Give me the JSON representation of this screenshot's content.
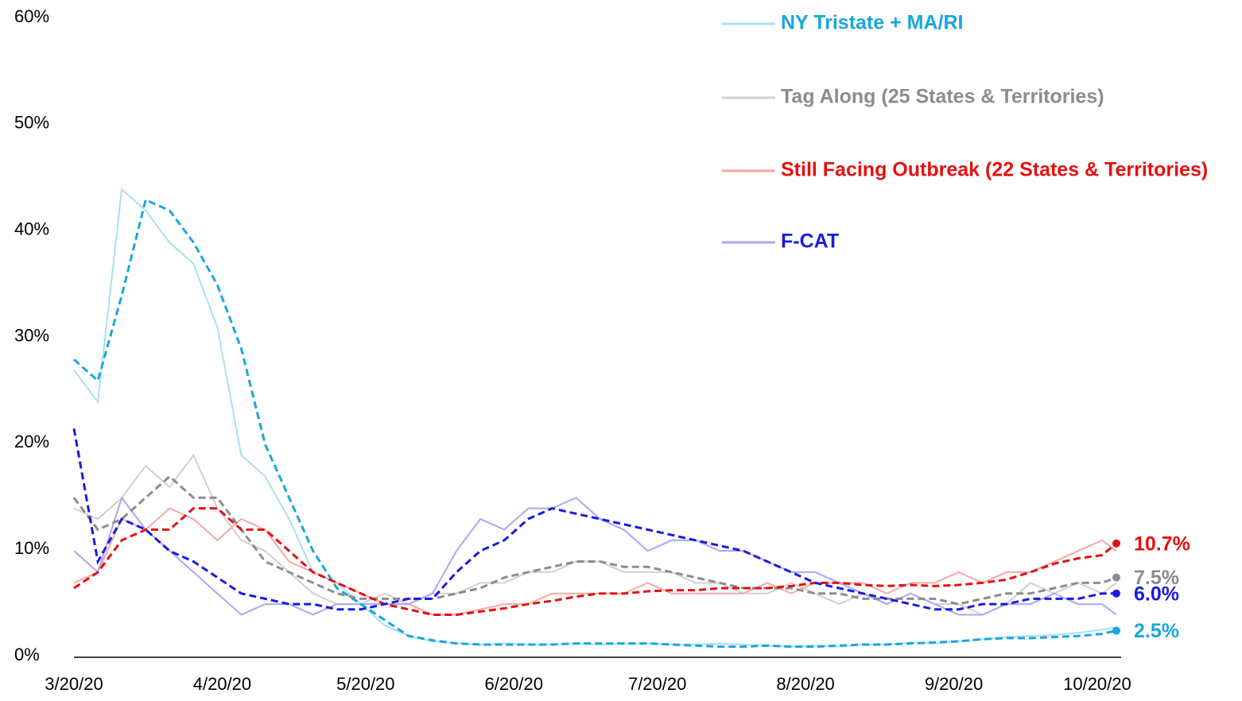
{
  "chart_data": {
    "type": "line",
    "x": [
      "3/20/20",
      "3/25/20",
      "3/30/20",
      "4/4/20",
      "4/9/20",
      "4/14/20",
      "4/19/20",
      "4/24/20",
      "4/29/20",
      "5/4/20",
      "5/9/20",
      "5/14/20",
      "5/19/20",
      "5/24/20",
      "5/29/20",
      "6/3/20",
      "6/8/20",
      "6/13/20",
      "6/18/20",
      "6/23/20",
      "6/28/20",
      "7/3/20",
      "7/8/20",
      "7/13/20",
      "7/18/20",
      "7/23/20",
      "7/28/20",
      "8/2/20",
      "8/7/20",
      "8/12/20",
      "8/17/20",
      "8/22/20",
      "8/27/20",
      "9/1/20",
      "9/6/20",
      "9/11/20",
      "9/16/20",
      "9/21/20",
      "9/26/20",
      "10/1/20",
      "10/6/20",
      "10/11/20",
      "10/16/20",
      "10/21/20",
      "10/24/20"
    ],
    "xlim": [
      "3/20/20",
      "10/25/20"
    ],
    "xticks": [
      "3/20/20",
      "4/20/20",
      "5/20/20",
      "6/20/20",
      "7/20/20",
      "8/20/20",
      "9/20/20",
      "10/20/20"
    ],
    "ylim": [
      0,
      60
    ],
    "yticks": [
      {
        "value": 0,
        "label": "0%"
      },
      {
        "value": 10,
        "label": "10%"
      },
      {
        "value": 20,
        "label": "20%"
      },
      {
        "value": 30,
        "label": "30%"
      },
      {
        "value": 40,
        "label": "40%"
      },
      {
        "value": 50,
        "label": "50%"
      },
      {
        "value": 60,
        "label": "60%"
      }
    ],
    "series": [
      {
        "name": "NY Tristate + MA/RI",
        "color": "#a8e0f0",
        "ma_color": "#19a6dd",
        "values": [
          27,
          24,
          44,
          42,
          39,
          37,
          31,
          19,
          17,
          13,
          8,
          7,
          5,
          3,
          2,
          1.5,
          1.3,
          1.2,
          1.3,
          1.2,
          1.2,
          1.3,
          1.2,
          1.3,
          1.3,
          1.2,
          1.2,
          1.3,
          1.2,
          1.1,
          1.0,
          1.1,
          1.0,
          1.2,
          1.2,
          1.4,
          1.3,
          1.5,
          1.7,
          1.9,
          2.0,
          2.1,
          2.3,
          2.6,
          2.8
        ],
        "ma_values": [
          28,
          26,
          34,
          43,
          42,
          39,
          35,
          29,
          20,
          15,
          10,
          6.5,
          5,
          3.5,
          2,
          1.6,
          1.3,
          1.2,
          1.2,
          1.2,
          1.2,
          1.3,
          1.3,
          1.3,
          1.3,
          1.2,
          1.1,
          1.0,
          1.0,
          1.1,
          1.0,
          1.0,
          1.1,
          1.2,
          1.2,
          1.3,
          1.4,
          1.5,
          1.7,
          1.8,
          1.8,
          1.9,
          2.0,
          2.2,
          2.5
        ],
        "end_label": "2.5%"
      },
      {
        "name": "Tag Along (25 States & Territories)",
        "color": "#d0d0d0",
        "ma_color": "#8c8c8c",
        "values": [
          14,
          13,
          15,
          18,
          16,
          19,
          14,
          11,
          10,
          8,
          6,
          5,
          5,
          6,
          5,
          6,
          6,
          7,
          7,
          8,
          8,
          9,
          9,
          8,
          8,
          8,
          7,
          7,
          6,
          6,
          7,
          6,
          5,
          6,
          5,
          6,
          5,
          5,
          4,
          5,
          7,
          6,
          7,
          6,
          7
        ],
        "ma_values": [
          15,
          12,
          13,
          15,
          17,
          15,
          15,
          12,
          9,
          8,
          7,
          6,
          5.5,
          5.5,
          5.5,
          5.5,
          6,
          6.5,
          7.5,
          8,
          8.5,
          9,
          9,
          8.5,
          8.5,
          8,
          7.5,
          7,
          6.5,
          6.5,
          6.5,
          6,
          6,
          5.5,
          5.5,
          5.5,
          5.5,
          5,
          5.5,
          6,
          6,
          6.5,
          7,
          7,
          7.5
        ],
        "end_label": "7.5%"
      },
      {
        "name": "Still Facing Outbreak (22 States & Territories)",
        "color": "#f4a8a8",
        "ma_color": "#e61010",
        "values": [
          7,
          8,
          13,
          12,
          14,
          13,
          11,
          13,
          12,
          9,
          8,
          7,
          6,
          5,
          5,
          4,
          4,
          4.5,
          5,
          5,
          6,
          6,
          6,
          6,
          7,
          6,
          6,
          6,
          6,
          7,
          6,
          7,
          7,
          7,
          6,
          7,
          7,
          8,
          7,
          8,
          8,
          9,
          10,
          11,
          10
        ],
        "ma_values": [
          6.5,
          8,
          11,
          12,
          12,
          14,
          14,
          12,
          12,
          10,
          8,
          7,
          6,
          5,
          4.5,
          4,
          4,
          4.3,
          4.6,
          5,
          5.3,
          5.7,
          6,
          6,
          6.2,
          6.3,
          6.3,
          6.5,
          6.5,
          6.5,
          6.7,
          7,
          7,
          6.8,
          6.7,
          6.8,
          6.7,
          6.8,
          7,
          7.3,
          8,
          8.8,
          9.3,
          9.6,
          10.7
        ],
        "end_label": "10.7%"
      },
      {
        "name": "F-CAT",
        "color": "#a8a8f4",
        "ma_color": "#1a1ae0",
        "values": [
          10,
          8,
          15,
          12,
          10,
          8,
          6,
          4,
          5,
          5,
          4,
          5,
          5,
          5,
          5,
          6,
          10,
          13,
          12,
          14,
          14,
          15,
          13,
          12,
          10,
          11,
          11,
          10,
          10,
          9,
          8,
          8,
          7,
          6,
          5,
          6,
          5,
          4,
          4,
          5,
          5,
          6,
          5,
          5,
          4
        ],
        "ma_values": [
          21.5,
          9,
          13,
          12,
          10,
          9,
          7.5,
          6,
          5.5,
          5,
          5,
          4.5,
          4.5,
          5,
          5.5,
          5.5,
          8,
          10,
          11,
          13,
          14,
          13.5,
          13,
          12.5,
          12,
          11.5,
          11,
          10.5,
          10,
          9,
          8,
          7,
          6.5,
          6,
          5.5,
          5,
          4.5,
          4.5,
          5,
          5,
          5.5,
          5.5,
          5.5,
          6,
          6.0
        ],
        "end_label": "6.0%"
      }
    ]
  }
}
